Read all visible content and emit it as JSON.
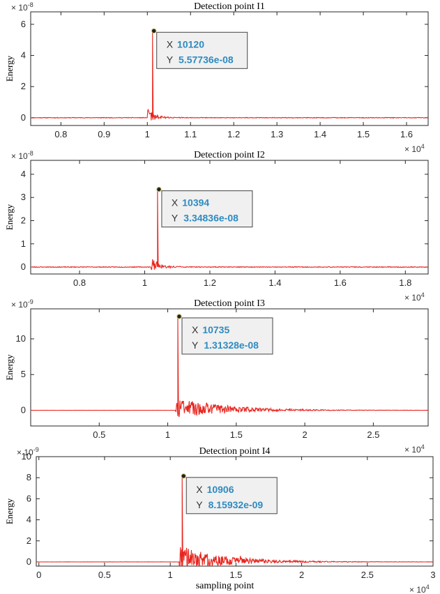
{
  "chart_data": [
    {
      "type": "line",
      "title": "Detection point I1",
      "ylabel": "Energy",
      "xlabel": "",
      "y_exponent": "× 10^-8",
      "x_exponent": "× 10^4",
      "xlim": [
        0.73,
        1.65
      ],
      "ylim": [
        -0.5,
        6.8
      ],
      "xticks": [
        0.8,
        0.9,
        1.0,
        1.1,
        1.2,
        1.3,
        1.4,
        1.5,
        1.6
      ],
      "xtick_labels": [
        "0.8",
        "0.9",
        "1",
        "1.1",
        "1.2",
        "1.3",
        "1.4",
        "1.5",
        "1.6"
      ],
      "yticks": [
        0,
        2,
        4,
        6
      ],
      "ytick_labels": [
        "0",
        "2",
        "4",
        "6"
      ],
      "peak": {
        "x": 1.012,
        "y": 5.57736
      },
      "onset": 1.0,
      "decay": 0.02,
      "baseline_noise": 0.04,
      "burst_amp": 0.9,
      "noise_amp": 0.3,
      "seed": 11,
      "datatip": {
        "x_label": "X",
        "x_value": "10120",
        "y_label": "Y",
        "y_value": "5.57736e-08"
      },
      "series": [
        {
          "name": "Energy",
          "color": "#e8251e"
        }
      ]
    },
    {
      "type": "line",
      "title": "Detection point I2",
      "ylabel": "Energy",
      "xlabel": "",
      "y_exponent": "× 10^-8",
      "x_exponent": "× 10^4",
      "xlim": [
        0.65,
        1.87
      ],
      "ylim": [
        -0.3,
        4.6
      ],
      "xticks": [
        0.8,
        1.0,
        1.2,
        1.4,
        1.6,
        1.8
      ],
      "xtick_labels": [
        "0.8",
        "1",
        "1.2",
        "1.4",
        "1.6",
        "1.8"
      ],
      "yticks": [
        0,
        1,
        2,
        3,
        4
      ],
      "ytick_labels": [
        "0",
        "1",
        "2",
        "3",
        "4"
      ],
      "peak": {
        "x": 1.0394,
        "y": 3.34836
      },
      "onset": 1.02,
      "decay": 0.03,
      "baseline_noise": 0.03,
      "burst_amp": 0.6,
      "noise_amp": 0.15,
      "seed": 23,
      "datatip": {
        "x_label": "X",
        "x_value": "10394",
        "y_label": "Y",
        "y_value": "3.34836e-08"
      },
      "series": [
        {
          "name": "Energy",
          "color": "#e8251e"
        }
      ]
    },
    {
      "type": "line",
      "title": "Detection point I3",
      "ylabel": "Energy",
      "xlabel": "",
      "y_exponent": "× 10^-9",
      "x_exponent": "× 10^4",
      "xlim": [
        0.0,
        2.9
      ],
      "ylim": [
        -2.2,
        14.2
      ],
      "xticks": [
        0.5,
        1.0,
        1.5,
        2.0,
        2.5
      ],
      "xtick_labels": [
        "0.5",
        "1",
        "1.5",
        "2",
        "2.5"
      ],
      "yticks": [
        0,
        5,
        10
      ],
      "ytick_labels": [
        "0",
        "5",
        "10"
      ],
      "peak": {
        "x": 1.0735,
        "y": 13.1328
      },
      "onset": 1.06,
      "decay": 0.35,
      "baseline_noise": 0.02,
      "burst_amp": 3.0,
      "noise_amp": 1.2,
      "seed": 37,
      "datatip": {
        "x_label": "X",
        "x_value": "10735",
        "y_label": "Y",
        "y_value": "1.31328e-08"
      },
      "series": [
        {
          "name": "Energy",
          "color": "#e8251e"
        }
      ]
    },
    {
      "type": "line",
      "title": "Detection point I4",
      "ylabel": "Energy",
      "xlabel": "sampling point",
      "y_exponent": "× 10^-9",
      "x_exponent": "× 10^4",
      "xlim": [
        -0.02,
        3.0
      ],
      "ylim": [
        -0.4,
        10.0
      ],
      "xticks": [
        0,
        0.5,
        1.0,
        1.5,
        2.0,
        2.5,
        3.0
      ],
      "xtick_labels": [
        "0",
        "0.5",
        "1",
        "1.5",
        "2",
        "2.5",
        "3"
      ],
      "yticks": [
        0,
        2,
        4,
        6,
        8,
        10
      ],
      "ytick_labels": [
        "0",
        "2",
        "4",
        "6",
        "8",
        "10"
      ],
      "peak": {
        "x": 1.0906,
        "y": 8.15932
      },
      "onset": 1.07,
      "decay": 0.35,
      "baseline_noise": 0.02,
      "burst_amp": 2.4,
      "noise_amp": 0.6,
      "seed": 53,
      "datatip": {
        "x_label": "X",
        "x_value": "10906",
        "y_label": "Y",
        "y_value": "8.15932e-09"
      },
      "series": [
        {
          "name": "Energy",
          "color": "#e8251e"
        }
      ]
    }
  ]
}
